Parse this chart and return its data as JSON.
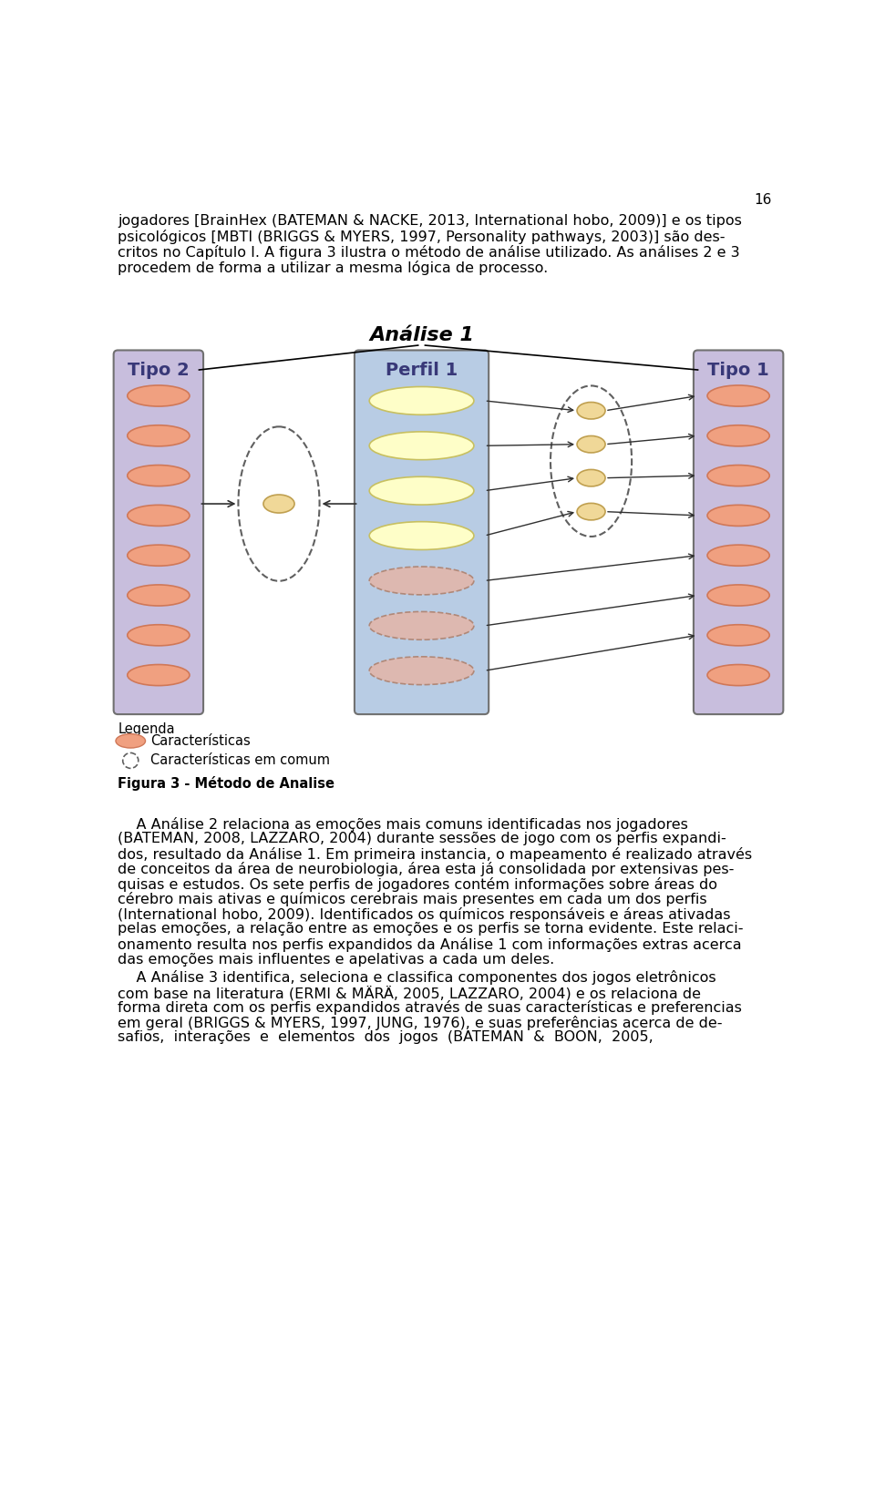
{
  "page_number": "16",
  "top_text_line1": "jogadores [BrainHex (BATEMAN & NACKE, 2013, International hobo, 2009)] e os tipos",
  "top_text_line2": "psicológicos [MBTI (BRIGGS & MYERS, 1997, Personality pathways, 2003)] são des-",
  "top_text_line3": "critos no Capítulo I. A figura 3 ilustra o método de análise utilizado. As análises 2 e 3",
  "top_text_line4": "procedem de forma a utilizar a mesma lógica de processo.",
  "diagram_title": "Análise 1",
  "box_tipo2_label": "Tipo 2",
  "box_perfil1_label": "Perfil 1",
  "box_tipo1_label": "Tipo 1",
  "legend_title": "Legenda",
  "legend_item1": "Características",
  "legend_item2": "Características em comum",
  "figure_caption": "Figura 3 - Método de Analise",
  "body_text_p1_lines": [
    "    A Análise 2 relaciona as emoções mais comuns identificadas nos jogadores",
    "(BATEMAN, 2008, LAZZARO, 2004) durante sessões de jogo com os perfis expandi-",
    "dos, resultado da Análise 1. Em primeira instancia, o mapeamento é realizado através",
    "de conceitos da área de neurobiologia, área esta já consolidada por extensivas pes-",
    "quisas e estudos. Os sete perfis de jogadores contém informações sobre áreas do",
    "cérebro mais ativas e químicos cerebrais mais presentes em cada um dos perfis",
    "(International hobo, 2009). Identificados os químicos responsáveis e áreas ativadas",
    "pelas emoções, a relação entre as emoções e os perfis se torna evidente. Este relaci-",
    "onamento resulta nos perfis expandidos da Análise 1 com informações extras acerca",
    "das emoções mais influentes e apelativas a cada um deles."
  ],
  "body_text_p2_lines": [
    "    A Análise 3 identifica, seleciona e classifica componentes dos jogos eletrônicos",
    "com base na literatura (ERMI & MÄRÄ, 2005, LAZZARO, 2004) e os relaciona de",
    "forma direta com os perfis expandidos através de suas características e preferencias",
    "em geral (BRIGGS & MYERS, 1997, JUNG, 1976), e suas preferências acerca de de-",
    "safios,  interações  e  elementos  dos  jogos  (BATEMAN  &  BOON,  2005,"
  ],
  "bg_tipo_color": "#c8bedd",
  "bg_perfil_color": "#b8cce4",
  "ellipse_salmon": "#f0a080",
  "ellipse_salmon_edge": "#d07858",
  "ellipse_yellow": "#fefec8",
  "ellipse_yellow_edge": "#c8c060",
  "ellipse_dashed_fill": "#ddb8b0",
  "ellipse_dashed_edge": "#b08878",
  "small_ellipse_fill": "#f0d898",
  "small_ellipse_edge": "#c0a050",
  "dashed_oval_color": "#606060",
  "box_border_color": "#707070",
  "box_label_color": "#383878",
  "arrow_color": "#303030"
}
